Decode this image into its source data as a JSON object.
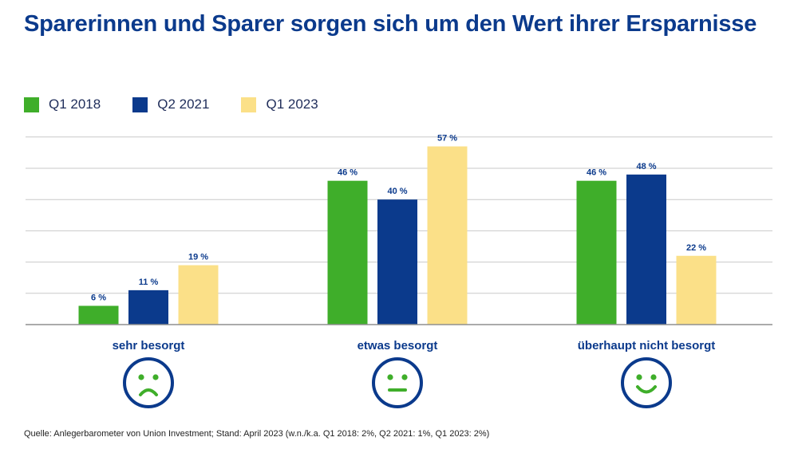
{
  "title": "Sparerinnen und Sparer sorgen sich um den Wert ihrer Ersparnisse",
  "source": "Quelle: Anlegerbarometer von Union Investment; Stand: April 2023 (w.n./k.a. Q1 2018: 2%, Q2 2021: 1%, Q1 2023: 2%)",
  "colors": {
    "title": "#0b3a8c",
    "grid": "#c9c9c9",
    "axis": "#8f8f8f",
    "label": "#0b3a8c"
  },
  "chart_data": {
    "type": "bar",
    "categories": [
      "sehr besorgt",
      "etwas besorgt",
      "überhaupt nicht besorgt"
    ],
    "category_icons": [
      "sad-face-icon",
      "neutral-face-icon",
      "happy-face-icon"
    ],
    "series": [
      {
        "name": "Q1 2018",
        "color": "#3fae2a",
        "values": [
          6,
          46,
          46
        ]
      },
      {
        "name": "Q2 2021",
        "color": "#0b3a8c",
        "values": [
          11,
          40,
          48
        ]
      },
      {
        "name": "Q1 2023",
        "color": "#fbe088",
        "values": [
          19,
          57,
          22
        ]
      }
    ],
    "value_labels": [
      [
        "6 %",
        "46 %",
        "46 %"
      ],
      [
        "11 %",
        "40 %",
        "48 %"
      ],
      [
        "19 %",
        "57 %",
        "22 %"
      ]
    ],
    "ylim": [
      0,
      60
    ],
    "grid": true,
    "legend_position": "top-left"
  }
}
